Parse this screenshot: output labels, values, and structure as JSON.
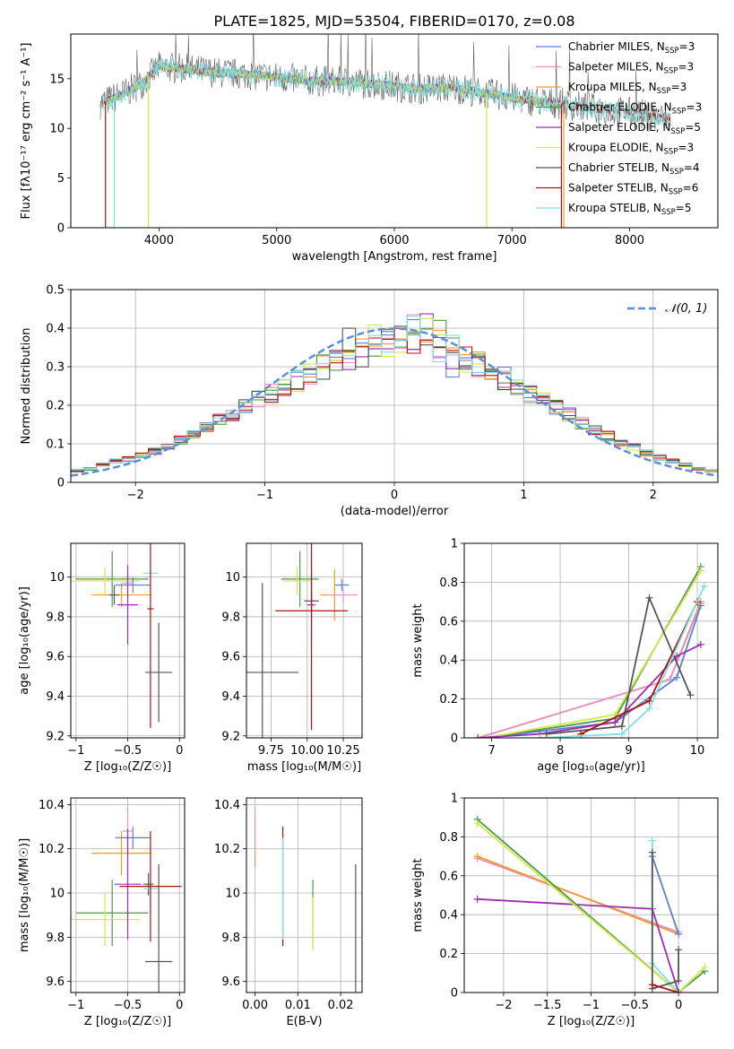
{
  "figure": {
    "title": "PLATE=1825, MJD=53504, FIBERID=0170, z=0.08"
  },
  "colors": {
    "chabrier_miles": "#5b7fd6",
    "salpeter_miles": "#e88fc6",
    "kroupa_miles": "#f09a2e",
    "chabrier_elodie": "#4a9a4a",
    "salpeter_elodie": "#9b2fb0",
    "kroupa_elodie": "#d4e84a",
    "chabrier_stelib": "#555555",
    "salpeter_stelib": "#b01010",
    "kroupa_stelib": "#7fe0e0",
    "normal_curve": "#5b8fd6",
    "grid": "#b0b0b0"
  },
  "chart_data": [
    {
      "id": "spectrum",
      "type": "line",
      "xlabel": "wavelength [Angstrom, rest frame]",
      "ylabel": "Flux [fλ10⁻¹⁷ erg cm⁻² s⁻¹ A⁻¹]",
      "xlim": [
        3250,
        8750
      ],
      "ylim": [
        0,
        19.5
      ],
      "xticks": [
        4000,
        5000,
        6000,
        7000,
        8000
      ],
      "yticks": [
        0,
        5,
        10,
        15
      ],
      "grid": false,
      "legend_position": "top-right",
      "series": [
        {
          "key": "chabrier_miles",
          "name": "Chabrier MILES, N",
          "ssp": "3"
        },
        {
          "key": "salpeter_miles",
          "name": "Salpeter MILES, N",
          "ssp": "3"
        },
        {
          "key": "kroupa_miles",
          "name": "Kroupa MILES, N",
          "ssp": "3"
        },
        {
          "key": "chabrier_elodie",
          "name": "Chabrier ELODIE, N",
          "ssp": "3"
        },
        {
          "key": "salpeter_elodie",
          "name": "Salpeter ELODIE, N",
          "ssp": "5"
        },
        {
          "key": "kroupa_elodie",
          "name": "Kroupa ELODIE, N",
          "ssp": "3"
        },
        {
          "key": "chabrier_stelib",
          "name": "Chabrier STELIB, N",
          "ssp": "4"
        },
        {
          "key": "salpeter_stelib",
          "name": "Salpeter STELIB, N",
          "ssp": "6"
        },
        {
          "key": "kroupa_stelib",
          "name": "Kroupa STELIB, N",
          "ssp": "5"
        }
      ],
      "continuum": {
        "x": [
          3500,
          3700,
          3850,
          4000,
          4200,
          4500,
          4800,
          5100,
          5300,
          5600,
          5900,
          6200,
          6500,
          6800,
          7100,
          7400,
          7700,
          8000,
          8300
        ],
        "y": [
          12.5,
          13.5,
          14.5,
          16.2,
          16.0,
          15.6,
          15.4,
          15.0,
          14.8,
          14.7,
          14.4,
          14.0,
          14.1,
          13.5,
          12.9,
          12.5,
          12.0,
          11.6,
          11.0
        ]
      },
      "drops": [
        {
          "series": "kroupa_stelib",
          "x": 3620
        },
        {
          "series": "kroupa_elodie",
          "x": 3910
        },
        {
          "series": "salpeter_stelib",
          "x": 3545
        },
        {
          "series": "kroupa_elodie",
          "x": 6785
        },
        {
          "series": "salpeter_stelib",
          "x": 7420
        },
        {
          "series": "kroupa_miles",
          "x": 7440
        }
      ],
      "data_range": {
        "start": 3500,
        "end": 8350
      }
    },
    {
      "id": "residuals",
      "type": "step",
      "xlabel": "(data-model)/error",
      "ylabel": "Normed distribution",
      "xlim": [
        -2.5,
        2.5
      ],
      "ylim": [
        0,
        0.5
      ],
      "xticks": [
        -2,
        -1,
        0,
        1,
        2
      ],
      "yticks": [
        0.0,
        0.1,
        0.2,
        0.3,
        0.4,
        0.5
      ],
      "grid": true,
      "legend_position": "top-right",
      "legend": "𝒩(0, 1)",
      "bins": {
        "start": -2.5,
        "width": 0.1,
        "count": 50,
        "shape_values": [
          0.03,
          0.035,
          0.045,
          0.055,
          0.06,
          0.07,
          0.08,
          0.095,
          0.11,
          0.125,
          0.145,
          0.16,
          0.175,
          0.2,
          0.215,
          0.23,
          0.25,
          0.265,
          0.285,
          0.3,
          0.31,
          0.33,
          0.345,
          0.36,
          0.37,
          0.38,
          0.375,
          0.365,
          0.355,
          0.34,
          0.32,
          0.305,
          0.285,
          0.27,
          0.25,
          0.23,
          0.21,
          0.195,
          0.175,
          0.155,
          0.135,
          0.12,
          0.1,
          0.09,
          0.075,
          0.065,
          0.055,
          0.045,
          0.035,
          0.03
        ]
      }
    },
    {
      "id": "age_vs_Z",
      "type": "errorbar",
      "xlabel": "Z [log₁₀(Z/Z☉)]",
      "ylabel": "age  [log₁₀(age/yr)]",
      "xlim": [
        -1.05,
        0.05
      ],
      "ylim": [
        9.19,
        10.17
      ],
      "xticks": [
        -1.0,
        -0.5,
        0.0
      ],
      "yticks": [
        9.2,
        9.4,
        9.6,
        9.8,
        10.0
      ],
      "grid": true,
      "points": [
        {
          "series": "chabrier_elodie",
          "x": -0.65,
          "xerr": 0.35,
          "y": 9.99,
          "yerr": 0.14
        },
        {
          "series": "kroupa_elodie",
          "x": -0.72,
          "xerr": 0.34,
          "y": 9.98,
          "yerr": 0.07
        },
        {
          "series": "kroupa_miles",
          "x": -0.56,
          "xerr": 0.29,
          "y": 9.91,
          "yerr": 0.06
        },
        {
          "series": "chabrier_miles",
          "x": -0.45,
          "xerr": 0.17,
          "y": 9.96,
          "yerr": 0.04
        },
        {
          "series": "salpeter_miles",
          "x": -0.5,
          "xerr": 0.05,
          "y": 9.97,
          "yerr": 0.04
        },
        {
          "series": "salpeter_elodie",
          "x": -0.5,
          "xerr": 0.1,
          "y": 9.86,
          "yerr": 0.2
        },
        {
          "series": "chabrier_stelib",
          "x": -0.63,
          "xerr": 0.05,
          "y": 9.91,
          "yerr": 0.05
        },
        {
          "series": "kroupa_stelib",
          "x": -0.28,
          "xerr": 0.07,
          "y": 10.02,
          "yerr": 0.08
        },
        {
          "series": "salpeter_stelib",
          "x": -0.28,
          "xerr": 0.03,
          "y": 9.84,
          "yerr": 0.6
        },
        {
          "series": "chabrier_stelib",
          "x": -0.2,
          "xerr": 0.13,
          "y": 9.52,
          "yerr": 0.25
        }
      ]
    },
    {
      "id": "age_vs_mass",
      "type": "errorbar",
      "xlabel": "mass [log₁₀(M/M☉)]",
      "ylabel": "",
      "xlim": [
        9.58,
        10.38
      ],
      "ylim": [
        9.19,
        10.17
      ],
      "xticks": [
        9.75,
        10.0,
        10.25
      ],
      "xticklabels": [
        "9.75",
        "10.00",
        "10.25"
      ],
      "yticks": [
        9.2,
        9.4,
        9.6,
        9.8,
        10.0
      ],
      "grid": true,
      "points": [
        {
          "series": "chabrier_elodie",
          "x": 9.95,
          "xerr": 0.13,
          "y": 9.99,
          "yerr": 0.14
        },
        {
          "series": "kroupa_elodie",
          "x": 9.93,
          "xerr": 0.1,
          "y": 9.98,
          "yerr": 0.07
        },
        {
          "series": "kroupa_miles",
          "x": 10.19,
          "xerr": 0.1,
          "y": 9.91,
          "yerr": 0.13
        },
        {
          "series": "chabrier_miles",
          "x": 10.24,
          "xerr": 0.05,
          "y": 9.96,
          "yerr": 0.03
        },
        {
          "series": "salpeter_miles",
          "x": 10.25,
          "xerr": 0.1,
          "y": 9.91,
          "yerr": 0.04
        },
        {
          "series": "salpeter_elodie",
          "x": 10.03,
          "xerr": 0.03,
          "y": 9.86,
          "yerr": 0.18
        },
        {
          "series": "kroupa_stelib",
          "x": 10.03,
          "xerr": 0.02,
          "y": 10.0,
          "yerr": 0.11
        },
        {
          "series": "chabrier_stelib",
          "x": 10.03,
          "xerr": 0.05,
          "y": 9.88,
          "yerr": 0.05
        },
        {
          "series": "salpeter_stelib",
          "x": 10.03,
          "xerr": 0.25,
          "y": 9.83,
          "yerr": 0.6
        },
        {
          "series": "chabrier_stelib",
          "x": 9.69,
          "xerr": 0.25,
          "y": 9.52,
          "yerr": 0.45
        }
      ]
    },
    {
      "id": "weight_vs_age",
      "type": "line",
      "xlabel": "age  [log₁₀(age/yr)]",
      "ylabel": "mass weight",
      "xlim": [
        6.6,
        10.3
      ],
      "ylim": [
        0,
        1.0
      ],
      "xticks": [
        7,
        8,
        9,
        10
      ],
      "yticks": [
        0.0,
        0.2,
        0.4,
        0.6,
        0.8,
        1.0
      ],
      "grid": true,
      "series": [
        {
          "key": "kroupa_miles",
          "x": [
            6.8,
            9.6,
            10.05
          ],
          "y": [
            0.0,
            0.3,
            0.7
          ]
        },
        {
          "key": "salpeter_miles",
          "x": [
            6.8,
            9.6,
            10.05
          ],
          "y": [
            0.0,
            0.3,
            0.69
          ]
        },
        {
          "key": "chabrier_miles",
          "x": [
            6.9,
            8.8,
            9.7,
            10.05
          ],
          "y": [
            0.0,
            0.08,
            0.31,
            0.68
          ]
        },
        {
          "key": "chabrier_elodie",
          "x": [
            6.9,
            8.8,
            10.05
          ],
          "y": [
            0.0,
            0.1,
            0.88
          ]
        },
        {
          "key": "kroupa_elodie",
          "x": [
            6.9,
            8.8,
            10.05
          ],
          "y": [
            0.0,
            0.12,
            0.86
          ]
        },
        {
          "key": "salpeter_elodie",
          "x": [
            6.8,
            7.7,
            8.8,
            9.7,
            10.05
          ],
          "y": [
            0.0,
            0.02,
            0.08,
            0.42,
            0.48
          ]
        },
        {
          "key": "chabrier_stelib",
          "x": [
            7.8,
            8.9,
            9.3,
            9.9
          ],
          "y": [
            0.02,
            0.06,
            0.72,
            0.22
          ]
        },
        {
          "key": "salpeter_stelib",
          "x": [
            8.3,
            9.3,
            10.0
          ],
          "y": [
            0.02,
            0.19,
            0.7
          ]
        },
        {
          "key": "kroupa_stelib",
          "x": [
            7.7,
            8.9,
            9.3,
            10.1
          ],
          "y": [
            0.0,
            0.02,
            0.15,
            0.78
          ]
        }
      ]
    },
    {
      "id": "mass_vs_Z",
      "type": "errorbar",
      "xlabel": "Z [log₁₀(Z/Z☉)]",
      "ylabel": "mass [log₁₀(M/M☉)]",
      "xlim": [
        -1.05,
        0.05
      ],
      "ylim": [
        9.55,
        10.43
      ],
      "xticks": [
        -1.0,
        -0.5,
        0.0
      ],
      "yticks": [
        9.6,
        9.8,
        10.0,
        10.2,
        10.4
      ],
      "grid": true,
      "points": [
        {
          "series": "chabrier_elodie",
          "x": -0.65,
          "xerr": 0.35,
          "y": 9.91,
          "yerr": 0.15
        },
        {
          "series": "kroupa_elodie",
          "x": -0.72,
          "xerr": 0.34,
          "y": 9.88,
          "yerr": 0.12
        },
        {
          "series": "kroupa_miles",
          "x": -0.56,
          "xerr": 0.29,
          "y": 10.18,
          "yerr": 0.1
        },
        {
          "series": "chabrier_miles",
          "x": -0.45,
          "xerr": 0.17,
          "y": 10.25,
          "yerr": 0.05
        },
        {
          "series": "salpeter_miles",
          "x": -0.5,
          "xerr": 0.05,
          "y": 10.28,
          "yerr": 0.11
        },
        {
          "series": "salpeter_elodie",
          "x": -0.5,
          "xerr": 0.13,
          "y": 10.04,
          "yerr": 0.25
        },
        {
          "series": "chabrier_stelib",
          "x": -0.3,
          "xerr": 0.05,
          "y": 10.04,
          "yerr": 0.05
        },
        {
          "series": "kroupa_stelib",
          "x": -0.28,
          "xerr": 0.07,
          "y": 10.02,
          "yerr": 0.08
        },
        {
          "series": "salpeter_stelib",
          "x": -0.28,
          "xerr": 0.3,
          "y": 10.03,
          "yerr": 0.25
        },
        {
          "series": "chabrier_stelib",
          "x": -0.2,
          "xerr": 0.13,
          "y": 9.69,
          "yerr": 0.44
        }
      ]
    },
    {
      "id": "mass_vs_EBV",
      "type": "errorbar",
      "xlabel": "E(B-V)",
      "ylabel": "",
      "xlim": [
        -0.002,
        0.025
      ],
      "ylim": [
        9.55,
        10.43
      ],
      "xticks": [
        0.0,
        0.01,
        0.02
      ],
      "xticklabels": [
        "0.00",
        "0.01",
        "0.02"
      ],
      "yticks": [
        9.6,
        9.8,
        10.0,
        10.2,
        10.4
      ],
      "grid": true,
      "points": [
        {
          "series": "kroupa_miles",
          "x": 0.0,
          "y": 10.23,
          "yerr": 0.11
        },
        {
          "series": "salpeter_miles",
          "x": 0.0,
          "y": 10.28,
          "yerr": 0.11
        },
        {
          "series": "salpeter_stelib",
          "x": 0.0065,
          "y": 10.03,
          "yerr": 0.27
        },
        {
          "series": "kroupa_stelib",
          "x": 0.0065,
          "y": 10.02,
          "yerr": 0.23
        },
        {
          "series": "chabrier_elodie",
          "x": 0.0135,
          "y": 9.91,
          "yerr": 0.15
        },
        {
          "series": "kroupa_elodie",
          "x": 0.0135,
          "y": 9.86,
          "yerr": 0.12
        },
        {
          "series": "chabrier_stelib",
          "x": 0.0235,
          "y": 9.69,
          "yerr": 0.44
        }
      ]
    },
    {
      "id": "weight_vs_Z",
      "type": "line",
      "xlabel": "Z [log₁₀(Z/Z☉)]",
      "ylabel": "mass weight",
      "xlim": [
        -2.45,
        0.45
      ],
      "ylim": [
        0,
        1.0
      ],
      "xticks": [
        -2.0,
        -1.5,
        -1.0,
        -0.5,
        0.0
      ],
      "yticks": [
        0.0,
        0.2,
        0.4,
        0.6,
        0.8,
        1.0
      ],
      "grid": true,
      "series": [
        {
          "key": "salpeter_miles",
          "x": [
            -2.3,
            0.0
          ],
          "y": [
            0.69,
            0.31
          ]
        },
        {
          "key": "kroupa_miles",
          "x": [
            -2.3,
            0.0
          ],
          "y": [
            0.7,
            0.3
          ]
        },
        {
          "key": "salpeter_elodie",
          "x": [
            -2.3,
            -0.3,
            0.0
          ],
          "y": [
            0.48,
            0.43,
            0.0
          ]
        },
        {
          "key": "chabrier_elodie",
          "x": [
            -2.3,
            0.0,
            0.3
          ],
          "y": [
            0.89,
            0.0,
            0.11
          ]
        },
        {
          "key": "kroupa_elodie",
          "x": [
            -2.3,
            0.0,
            0.3
          ],
          "y": [
            0.87,
            0.0,
            0.13
          ]
        },
        {
          "key": "chabrier_miles",
          "x": [
            -0.3,
            0.0
          ],
          "y": [
            0.7,
            0.3
          ]
        },
        {
          "key": "kroupa_stelib",
          "x": [
            -0.3,
            -0.3,
            0.0
          ],
          "y": [
            0.78,
            0.15,
            0.0
          ]
        },
        {
          "key": "chabrier_stelib",
          "x": [
            -0.3,
            -0.3,
            0.0,
            0.0
          ],
          "y": [
            0.72,
            0.02,
            0.06,
            0.22
          ]
        },
        {
          "key": "salpeter_stelib",
          "x": [
            -0.3,
            0.0
          ],
          "y": [
            0.04,
            0.0
          ]
        }
      ]
    }
  ]
}
